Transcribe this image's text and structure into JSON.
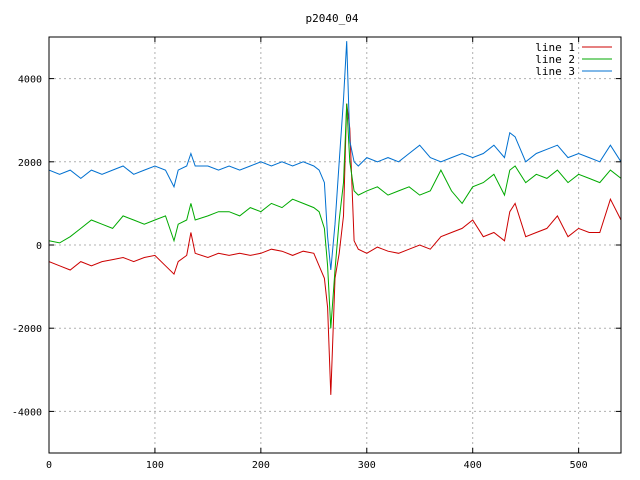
{
  "chart_data": {
    "type": "line",
    "title": "p2040_04",
    "xlabel": "",
    "ylabel": "",
    "xlim": [
      0,
      540
    ],
    "ylim": [
      -5000,
      5000
    ],
    "x_ticks": [
      0,
      100,
      200,
      300,
      400,
      500
    ],
    "y_ticks": [
      -4000,
      -2000,
      0,
      2000,
      4000
    ],
    "x_tick_labels": [
      "0",
      "100",
      "200",
      "300",
      "400",
      "500"
    ],
    "y_tick_labels": [
      "-4000",
      "-2000",
      "0",
      "2000",
      "4000"
    ],
    "grid": true,
    "legend_position": "top-right",
    "series": [
      {
        "name": "line 1",
        "color": "#cc0000",
        "x": [
          0,
          10,
          20,
          30,
          40,
          50,
          60,
          70,
          80,
          90,
          100,
          110,
          118,
          122,
          130,
          134,
          138,
          150,
          160,
          170,
          180,
          190,
          200,
          210,
          220,
          230,
          240,
          250,
          255,
          260,
          263,
          266,
          270,
          274,
          278,
          281,
          284,
          288,
          292,
          300,
          310,
          320,
          330,
          340,
          350,
          360,
          370,
          380,
          390,
          400,
          410,
          420,
          430,
          435,
          440,
          450,
          460,
          470,
          480,
          490,
          500,
          510,
          520,
          530,
          540
        ],
        "y": [
          -400,
          -500,
          -600,
          -400,
          -500,
          -400,
          -350,
          -300,
          -400,
          -300,
          -250,
          -500,
          -700,
          -400,
          -250,
          300,
          -200,
          -300,
          -200,
          -250,
          -200,
          -250,
          -200,
          -100,
          -150,
          -250,
          -150,
          -200,
          -500,
          -800,
          -1500,
          -3600,
          -800,
          -200,
          700,
          3400,
          2800,
          100,
          -100,
          -200,
          -50,
          -150,
          -200,
          -100,
          0,
          -100,
          200,
          300,
          400,
          600,
          200,
          300,
          100,
          800,
          1000,
          200,
          300,
          400,
          700,
          200,
          400,
          300,
          300,
          1100,
          600
        ]
      },
      {
        "name": "line 2",
        "color": "#00aa00",
        "x": [
          0,
          10,
          20,
          30,
          40,
          50,
          60,
          70,
          80,
          90,
          100,
          110,
          118,
          122,
          130,
          134,
          138,
          150,
          160,
          170,
          180,
          190,
          200,
          210,
          220,
          230,
          240,
          250,
          255,
          260,
          263,
          266,
          270,
          274,
          278,
          281,
          284,
          288,
          292,
          300,
          310,
          320,
          330,
          340,
          350,
          360,
          370,
          380,
          390,
          400,
          410,
          420,
          430,
          435,
          440,
          450,
          460,
          470,
          480,
          490,
          500,
          510,
          520,
          530,
          540
        ],
        "y": [
          100,
          50,
          200,
          400,
          600,
          500,
          400,
          700,
          600,
          500,
          600,
          700,
          100,
          500,
          600,
          1000,
          600,
          700,
          800,
          800,
          700,
          900,
          800,
          1000,
          900,
          1100,
          1000,
          900,
          800,
          400,
          -500,
          -2000,
          -600,
          600,
          1500,
          3400,
          2000,
          1300,
          1200,
          1300,
          1400,
          1200,
          1300,
          1400,
          1200,
          1300,
          1800,
          1300,
          1000,
          1400,
          1500,
          1700,
          1200,
          1800,
          1900,
          1500,
          1700,
          1600,
          1800,
          1500,
          1700,
          1600,
          1500,
          1800,
          1600
        ]
      },
      {
        "name": "line 3",
        "color": "#0070d0",
        "x": [
          0,
          10,
          20,
          30,
          40,
          50,
          60,
          70,
          80,
          90,
          100,
          110,
          118,
          122,
          130,
          134,
          138,
          150,
          160,
          170,
          180,
          190,
          200,
          210,
          220,
          230,
          240,
          250,
          255,
          260,
          263,
          266,
          270,
          274,
          278,
          281,
          284,
          288,
          292,
          300,
          310,
          320,
          330,
          340,
          350,
          360,
          370,
          380,
          390,
          400,
          410,
          420,
          430,
          435,
          440,
          450,
          460,
          470,
          480,
          490,
          500,
          510,
          520,
          530,
          540
        ],
        "y": [
          1800,
          1700,
          1800,
          1600,
          1800,
          1700,
          1800,
          1900,
          1700,
          1800,
          1900,
          1800,
          1400,
          1800,
          1900,
          2200,
          1900,
          1900,
          1800,
          1900,
          1800,
          1900,
          2000,
          1900,
          2000,
          1900,
          2000,
          1900,
          1800,
          1500,
          200,
          -600,
          500,
          2000,
          3500,
          4900,
          2500,
          2000,
          1900,
          2100,
          2000,
          2100,
          2000,
          2200,
          2400,
          2100,
          2000,
          2100,
          2200,
          2100,
          2200,
          2400,
          2100,
          2700,
          2600,
          2000,
          2200,
          2300,
          2400,
          2100,
          2200,
          2100,
          2000,
          2400,
          2000
        ]
      }
    ]
  }
}
